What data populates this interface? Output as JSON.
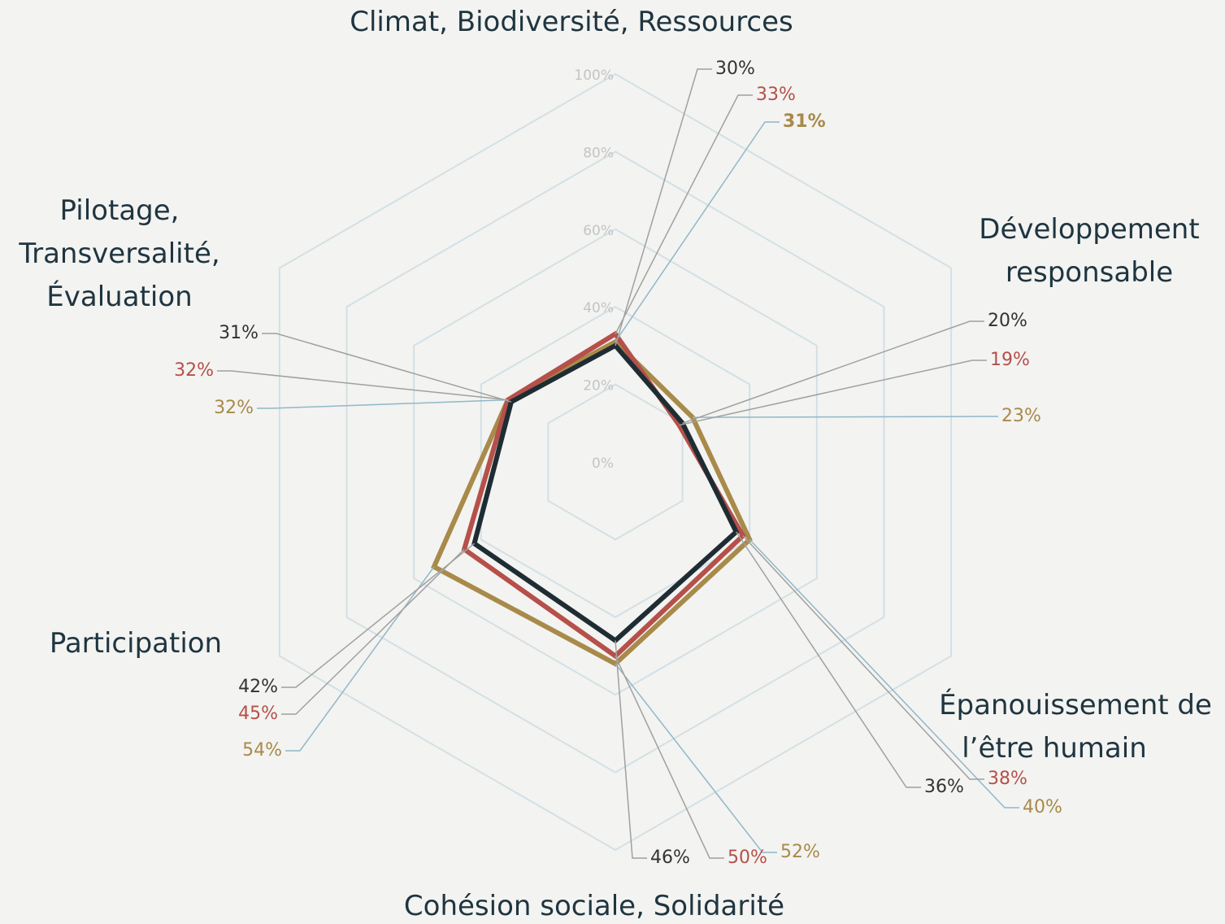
{
  "chart_data": {
    "type": "radar",
    "categories": [
      [
        "Climat, Biodiversité, Ressources"
      ],
      [
        "Développement",
        "responsable"
      ],
      [
        "Épanouissement de",
        "l’être humain"
      ],
      [
        "Cohésion sociale, Solidarité"
      ],
      [
        "Participation"
      ],
      [
        "Pilotage,",
        "Transversalité,",
        "Évaluation"
      ]
    ],
    "rlim": [
      0,
      100
    ],
    "rticks": [
      {
        "value": 0,
        "label": "0%"
      },
      {
        "value": 20,
        "label": "20%"
      },
      {
        "value": 40,
        "label": "40%"
      },
      {
        "value": 60,
        "label": "60%"
      },
      {
        "value": 80,
        "label": "80%"
      },
      {
        "value": 100,
        "label": "100%"
      }
    ],
    "series": [
      {
        "color": "#a88a4a",
        "values": [
          31,
          23,
          40,
          52,
          54,
          32
        ],
        "value_labels": [
          "31%",
          "23%",
          "40%",
          "52%",
          "54%",
          "32%"
        ]
      },
      {
        "color": "#b5504a",
        "values": [
          33,
          19,
          38,
          50,
          45,
          32
        ],
        "value_labels": [
          "33%",
          "19%",
          "38%",
          "50%",
          "45%",
          "32%"
        ]
      },
      {
        "color": "#1e2d33",
        "values": [
          30,
          20,
          36,
          46,
          42,
          31
        ],
        "value_labels": [
          "30%",
          "20%",
          "36%",
          "46%",
          "42%",
          "31%"
        ]
      }
    ]
  }
}
